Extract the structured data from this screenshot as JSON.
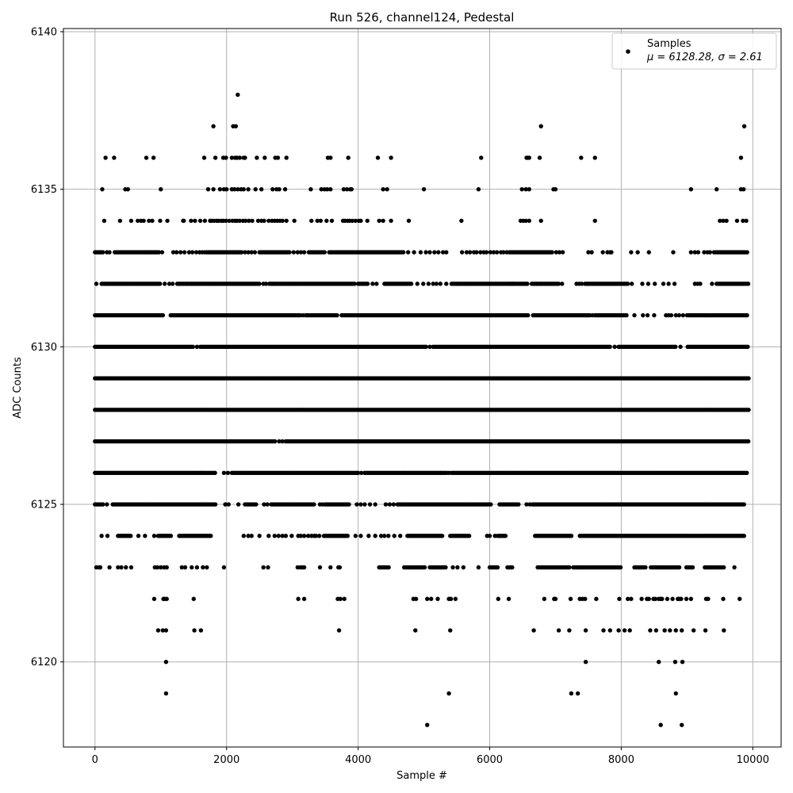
{
  "chart_data": {
    "type": "scatter",
    "title": "Run 526, channel124, Pedestal",
    "xlabel": "Sample #",
    "ylabel": "ADC Counts",
    "xlim": [
      -480,
      10430
    ],
    "ylim": [
      6117.3,
      6140.1
    ],
    "xticks": [
      0,
      2000,
      4000,
      6000,
      8000,
      10000
    ],
    "yticks": [
      6120,
      6125,
      6130,
      6135,
      6140
    ],
    "xtick_labels": [
      "0",
      "2000",
      "4000",
      "6000",
      "8000",
      "10000"
    ],
    "ytick_labels": [
      "6120",
      "6125",
      "6130",
      "6135",
      "6140"
    ],
    "grid": true,
    "legend_position": "upper-right",
    "marker_color": "#000000",
    "series": [
      {
        "name": "Samples",
        "stats_label": "μ = 6128.28, σ = 2.61",
        "mean": 6128.28,
        "sigma": 2.61,
        "n_samples": 10000,
        "x_start": 0,
        "x_end": 9940,
        "bands": [
          {
            "y": 6118,
            "x": [
              5050,
              8600,
              8920
            ]
          },
          {
            "y": 6119,
            "x": [
              1080,
              5380,
              7240,
              7340,
              8830
            ]
          },
          {
            "y": 6120,
            "x": [
              1080,
              7460,
              8570,
              8820,
              8930
            ]
          },
          {
            "y": 6121,
            "x": [
              960,
              1030,
              1080,
              1510,
              1610,
              3710,
              4870,
              5400,
              6670,
              7050,
              7210,
              7460,
              7730,
              7830,
              7960,
              8050,
              8130,
              8440,
              8530,
              8660,
              8740,
              8830,
              8920,
              9100,
              9280,
              9560
            ]
          },
          {
            "y": 6122,
            "x": [
              900,
              1040,
              1060,
              1090,
              1500,
              3090,
              3180,
              3690,
              3730,
              3790,
              4840,
              4880,
              5050,
              5110,
              5210,
              5380,
              5410,
              5480,
              6130,
              6290,
              6830,
              6980,
              7000,
              7230,
              7370,
              7410,
              7450,
              7620,
              7970,
              8100,
              8150,
              8310,
              8390,
              8420,
              8490,
              8520,
              8570,
              8600,
              8620,
              8700,
              8780,
              8860,
              8880,
              8910,
              8990,
              9060,
              9290,
              9320,
              9550,
              9800
            ]
          },
          {
            "y": 6123,
            "fill_ranges": [
              [
                4320,
                4480
              ],
              [
                4700,
                5030
              ],
              [
                5090,
                5330
              ],
              [
                6000,
                6120
              ],
              [
                6270,
                6350
              ],
              [
                6730,
                7230
              ],
              [
                7270,
                8000
              ],
              [
                8200,
                8370
              ],
              [
                8450,
                8900
              ],
              [
                8990,
                9100
              ],
              [
                9270,
                9560
              ]
            ],
            "x": [
              20,
              60,
              80,
              220,
              350,
              400,
              470,
              550,
              910,
              950,
              1000,
              1050,
              1090,
              1320,
              1370,
              1470,
              1550,
              1640,
              1700,
              1960,
              2560,
              2630,
              3080,
              3120,
              3150,
              3180,
              3420,
              3580,
              3700,
              3720,
              5440,
              5510,
              5600,
              5830,
              9720
            ]
          },
          {
            "y": 6124,
            "fill_ranges": [
              [
                350,
                550
              ],
              [
                960,
                1160
              ],
              [
                1280,
                1760
              ],
              [
                3480,
                3840
              ],
              [
                4750,
                5290
              ],
              [
                5400,
                5700
              ],
              [
                6120,
                6260
              ],
              [
                6690,
                7250
              ],
              [
                7370,
                9870
              ]
            ],
            "x": [
              100,
              190,
              660,
              760,
              900,
              2260,
              2330,
              2380,
              2500,
              2640,
              2730,
              2790,
              2850,
              2900,
              2990,
              3090,
              3130,
              3180,
              3240,
              3290,
              3330,
              3360,
              3410,
              3960,
              4040,
              4160,
              4260,
              4350,
              4400,
              4460,
              4550,
              4640,
              5960,
              6000,
              6080
            ]
          },
          {
            "y": 6125,
            "fill_ranges": [
              [
                0,
                140
              ],
              [
                270,
                1830
              ],
              [
                2280,
                2460
              ],
              [
                2680,
                3340
              ],
              [
                3500,
                3860
              ],
              [
                4600,
                6020
              ],
              [
                6150,
                6440
              ],
              [
                6650,
                9870
              ]
            ],
            "x": [
              180,
              1980,
              2030,
              2180,
              2570,
              2620,
              3420,
              3460,
              3980,
              4040,
              4100,
              4180,
              4260,
              4420,
              4480,
              4540,
              6560,
              6610
            ]
          },
          {
            "y": 6126,
            "fill_ranges": [
              [
                0,
                1830
              ],
              [
                2080,
                4000
              ],
              [
                4100,
                5350
              ],
              [
                5420,
                9930
              ]
            ],
            "x": [
              1960,
              2020,
              4050,
              5380
            ]
          },
          {
            "y": 6127,
            "fill_ranges": [
              [
                0,
                2750
              ],
              [
                2900,
                9940
              ]
            ],
            "x": [
              2800,
              2850
            ]
          },
          {
            "y": 6128,
            "fill_ranges": [
              [
                0,
                9940
              ]
            ],
            "x": []
          },
          {
            "y": 6129,
            "fill_ranges": [
              [
                0,
                9940
              ]
            ],
            "x": []
          },
          {
            "y": 6130,
            "fill_ranges": [
              [
                0,
                1500
              ],
              [
                1600,
                5050
              ],
              [
                5140,
                7850
              ],
              [
                7960,
                8840
              ],
              [
                9010,
                9930
              ]
            ],
            "x": [
              1550,
              5090,
              7900,
              8900
            ]
          },
          {
            "y": 6131,
            "fill_ranges": [
              [
                0,
                1050
              ],
              [
                1150,
                3120
              ],
              [
                3200,
                3700
              ],
              [
                3750,
                6600
              ],
              [
                6660,
                7500
              ],
              [
                7600,
                8100
              ],
              [
                9000,
                9930
              ]
            ],
            "x": [
              3160,
              7520,
              7560,
              8200,
              8330,
              8400,
              8500,
              8680,
              8720,
              8760,
              8830,
              8880,
              8940
            ]
          },
          {
            "y": 6132,
            "fill_ranges": [
              [
                100,
                1000
              ],
              [
                1250,
                2500
              ],
              [
                2650,
                3950
              ],
              [
                4000,
                4150
              ],
              [
                4400,
                4820
              ],
              [
                5420,
                6580
              ],
              [
                6640,
                7050
              ],
              [
                7450,
                8100
              ],
              [
                9450,
                9930
              ]
            ],
            "x": [
              20,
              1060,
              1130,
              1180,
              2560,
              2600,
              4220,
              4280,
              4900,
              4990,
              5070,
              5140,
              5190,
              5250,
              5340,
              6340,
              7100,
              7320,
              7360,
              7400,
              8160,
              8320,
              8410,
              8510,
              8640,
              8720,
              8810,
              9120,
              9160,
              9200,
              9380
            ]
          },
          {
            "y": 6133,
            "fill_ranges": [
              [
                0,
                140
              ],
              [
                300,
                990
              ],
              [
                1700,
                2240
              ],
              [
                2500,
                2960
              ],
              [
                3250,
                3500
              ],
              [
                3560,
                4700
              ],
              [
                6300,
                6950
              ],
              [
                9410,
                9930
              ]
            ],
            "x": [
              180,
              220,
              1020,
              1190,
              1240,
              1300,
              1360,
              1430,
              1480,
              1540,
              1590,
              1630,
              1670,
              2280,
              2330,
              2380,
              2430,
              3020,
              3080,
              3130,
              3180,
              4760,
              4850,
              4950,
              5030,
              5090,
              5160,
              5220,
              5290,
              5340,
              5580,
              5650,
              5700,
              5760,
              5800,
              5860,
              5910,
              5950,
              6010,
              6060,
              6110,
              6170,
              6210,
              6260,
              7010,
              7060,
              7110,
              7500,
              7550,
              7720,
              7790,
              7830,
              7850,
              8150,
              8250,
              8420,
              8790,
              9060,
              9120,
              9170,
              9260,
              9310,
              9350
            ]
          },
          {
            "y": 6134,
            "x": [
              140,
              380,
              550,
              650,
              700,
              740,
              820,
              870,
              990,
              1100,
              1340,
              1350,
              1460,
              1520,
              1600,
              1670,
              1750,
              1770,
              1810,
              1850,
              1880,
              1920,
              1950,
              1990,
              2040,
              2090,
              2130,
              2160,
              2200,
              2250,
              2290,
              2340,
              2390,
              2480,
              2530,
              2570,
              2640,
              2690,
              2730,
              2770,
              2810,
              2850,
              2910,
              3030,
              3290,
              3380,
              3430,
              3520,
              3600,
              3770,
              3800,
              3840,
              3870,
              3910,
              3960,
              4010,
              4040,
              4140,
              4320,
              4380,
              4500,
              4770,
              5570,
              6470,
              6510,
              6550,
              6600,
              6780,
              7600,
              9500,
              9550,
              9600,
              9760,
              9850,
              9900
            ]
          },
          {
            "y": 6135,
            "x": [
              110,
              460,
              500,
              1000,
              1720,
              1800,
              1900,
              1960,
              2000,
              2080,
              2120,
              2170,
              2220,
              2260,
              2330,
              2440,
              2530,
              2700,
              2760,
              2800,
              2890,
              3280,
              3440,
              3490,
              3530,
              3580,
              3780,
              3830,
              3880,
              3900,
              4380,
              4440,
              5000,
              5830,
              6490,
              6550,
              6600,
              6970,
              7000,
              9060,
              9450,
              9820,
              9860
            ]
          },
          {
            "y": 6136,
            "x": [
              160,
              290,
              780,
              890,
              1660,
              1830,
              1950,
              1990,
              2080,
              2130,
              2160,
              2200,
              2260,
              2280,
              2460,
              2580,
              2740,
              2780,
              2910,
              3540,
              3580,
              3850,
              4300,
              4500,
              5870,
              6560,
              6580,
              6600,
              6760,
              7390,
              7600,
              9820
            ]
          },
          {
            "y": 6137,
            "x": [
              1800,
              2100,
              2140,
              6780,
              9870
            ]
          },
          {
            "y": 6138,
            "x": [
              2170
            ]
          }
        ]
      }
    ]
  }
}
